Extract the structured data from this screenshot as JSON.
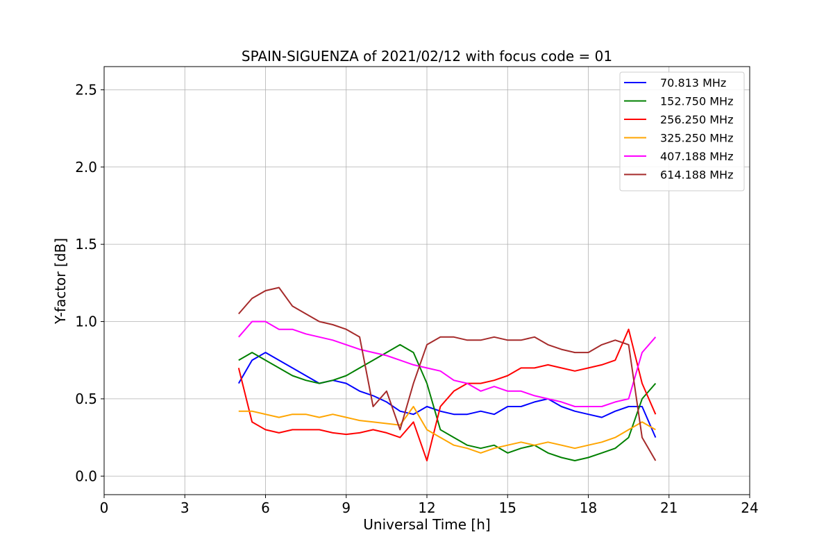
{
  "chart_data": {
    "type": "line",
    "title": "SPAIN-SIGUENZA of 2021/02/12 with focus code = 01",
    "xlabel": "Universal Time [h]",
    "ylabel": "Y-factor [dB]",
    "xlim": [
      0,
      24
    ],
    "ylim": [
      -0.12,
      2.65
    ],
    "xticks": [
      0,
      3,
      6,
      9,
      12,
      15,
      18,
      21,
      24
    ],
    "xtick_labels": [
      "0",
      "3",
      "6",
      "9",
      "12",
      "15",
      "18",
      "21",
      "24"
    ],
    "yticks": [
      0.0,
      0.5,
      1.0,
      1.5,
      2.0,
      2.5
    ],
    "ytick_labels": [
      "0.0",
      "0.5",
      "1.0",
      "1.5",
      "2.0",
      "2.5"
    ],
    "grid": true,
    "legend_position": "top-right",
    "series": [
      {
        "name": " 70.813 MHz",
        "color": "#0000ff",
        "x": [
          5.0,
          5.5,
          6.0,
          6.5,
          7.0,
          7.5,
          8.0,
          8.5,
          9.0,
          9.5,
          10.0,
          10.5,
          11.0,
          11.5,
          12.0,
          12.5,
          13.0,
          13.5,
          14.0,
          14.5,
          15.0,
          15.5,
          16.0,
          16.5,
          17.0,
          17.5,
          18.0,
          18.5,
          19.0,
          19.5,
          20.0,
          20.5
        ],
        "y": [
          0.6,
          0.75,
          0.8,
          0.75,
          0.7,
          0.65,
          0.6,
          0.62,
          0.6,
          0.55,
          0.52,
          0.48,
          0.42,
          0.4,
          0.45,
          0.42,
          0.4,
          0.4,
          0.42,
          0.4,
          0.45,
          0.45,
          0.48,
          0.5,
          0.45,
          0.42,
          0.4,
          0.38,
          0.42,
          0.45,
          0.45,
          0.25
        ]
      },
      {
        "name": "152.750 MHz",
        "color": "#008000",
        "x": [
          5.0,
          5.5,
          6.0,
          6.5,
          7.0,
          7.5,
          8.0,
          8.5,
          9.0,
          9.5,
          10.0,
          10.5,
          11.0,
          11.5,
          12.0,
          12.5,
          13.0,
          13.5,
          14.0,
          14.5,
          15.0,
          15.5,
          16.0,
          16.5,
          17.0,
          17.5,
          18.0,
          18.5,
          19.0,
          19.5,
          20.0,
          20.5
        ],
        "y": [
          0.75,
          0.8,
          0.75,
          0.7,
          0.65,
          0.62,
          0.6,
          0.62,
          0.65,
          0.7,
          0.75,
          0.8,
          0.85,
          0.8,
          0.6,
          0.3,
          0.25,
          0.2,
          0.18,
          0.2,
          0.15,
          0.18,
          0.2,
          0.15,
          0.12,
          0.1,
          0.12,
          0.15,
          0.18,
          0.25,
          0.5,
          0.6
        ]
      },
      {
        "name": "256.250 MHz",
        "color": "#ff0000",
        "x": [
          5.0,
          5.5,
          6.0,
          6.5,
          7.0,
          7.5,
          8.0,
          8.5,
          9.0,
          9.5,
          10.0,
          10.5,
          11.0,
          11.5,
          12.0,
          12.5,
          13.0,
          13.5,
          14.0,
          14.5,
          15.0,
          15.5,
          16.0,
          16.5,
          17.0,
          17.5,
          18.0,
          18.5,
          19.0,
          19.5,
          20.0,
          20.5
        ],
        "y": [
          0.7,
          0.35,
          0.3,
          0.28,
          0.3,
          0.3,
          0.3,
          0.28,
          0.27,
          0.28,
          0.3,
          0.28,
          0.25,
          0.35,
          0.1,
          0.45,
          0.55,
          0.6,
          0.6,
          0.62,
          0.65,
          0.7,
          0.7,
          0.72,
          0.7,
          0.68,
          0.7,
          0.72,
          0.75,
          0.95,
          0.6,
          0.4
        ]
      },
      {
        "name": "325.250 MHz",
        "color": "#ffa500",
        "x": [
          5.0,
          5.5,
          6.0,
          6.5,
          7.0,
          7.5,
          8.0,
          8.5,
          9.0,
          9.5,
          10.0,
          10.5,
          11.0,
          11.5,
          12.0,
          12.5,
          13.0,
          13.5,
          14.0,
          14.5,
          15.0,
          15.5,
          16.0,
          16.5,
          17.0,
          17.5,
          18.0,
          18.5,
          19.0,
          19.5,
          20.0,
          20.5
        ],
        "y": [
          0.42,
          0.42,
          0.4,
          0.38,
          0.4,
          0.4,
          0.38,
          0.4,
          0.38,
          0.36,
          0.35,
          0.34,
          0.33,
          0.45,
          0.3,
          0.25,
          0.2,
          0.18,
          0.15,
          0.18,
          0.2,
          0.22,
          0.2,
          0.22,
          0.2,
          0.18,
          0.2,
          0.22,
          0.25,
          0.3,
          0.35,
          0.3
        ]
      },
      {
        "name": "407.188 MHz",
        "color": "#ff00ff",
        "x": [
          5.0,
          5.5,
          6.0,
          6.5,
          7.0,
          7.5,
          8.0,
          8.5,
          9.0,
          9.5,
          10.0,
          10.5,
          11.0,
          11.5,
          12.0,
          12.5,
          13.0,
          13.5,
          14.0,
          14.5,
          15.0,
          15.5,
          16.0,
          16.5,
          17.0,
          17.5,
          18.0,
          18.5,
          19.0,
          19.5,
          20.0,
          20.5
        ],
        "y": [
          0.9,
          1.0,
          1.0,
          0.95,
          0.95,
          0.92,
          0.9,
          0.88,
          0.85,
          0.82,
          0.8,
          0.78,
          0.75,
          0.72,
          0.7,
          0.68,
          0.62,
          0.6,
          0.55,
          0.58,
          0.55,
          0.55,
          0.52,
          0.5,
          0.48,
          0.45,
          0.45,
          0.45,
          0.48,
          0.5,
          0.8,
          0.9
        ]
      },
      {
        "name": "614.188 MHz",
        "color": "#a52a2a",
        "x": [
          5.0,
          5.5,
          6.0,
          6.5,
          7.0,
          7.5,
          8.0,
          8.5,
          9.0,
          9.5,
          10.0,
          10.5,
          11.0,
          11.5,
          12.0,
          12.5,
          13.0,
          13.5,
          14.0,
          14.5,
          15.0,
          15.5,
          16.0,
          16.5,
          17.0,
          17.5,
          18.0,
          18.5,
          19.0,
          19.5,
          20.0,
          20.5
        ],
        "y": [
          1.05,
          1.15,
          1.2,
          1.22,
          1.1,
          1.05,
          1.0,
          0.98,
          0.95,
          0.9,
          0.45,
          0.55,
          0.3,
          0.6,
          0.85,
          0.9,
          0.9,
          0.88,
          0.88,
          0.9,
          0.88,
          0.88,
          0.9,
          0.85,
          0.82,
          0.8,
          0.8,
          0.85,
          0.88,
          0.85,
          0.25,
          0.1
        ]
      }
    ]
  }
}
